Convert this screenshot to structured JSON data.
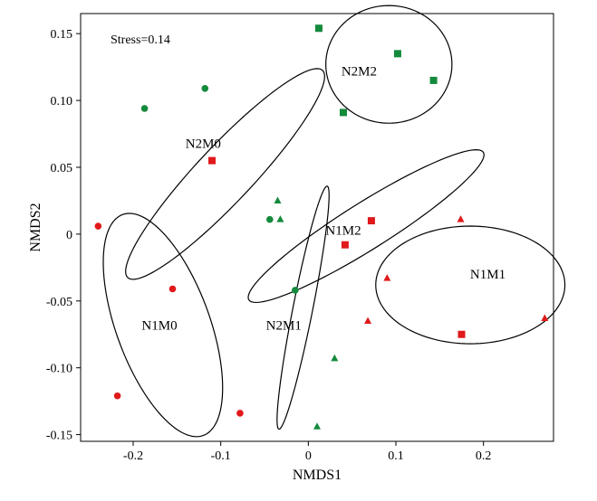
{
  "chart_data": {
    "type": "scatter",
    "xlabel": "NMDS1",
    "ylabel": "NMDS2",
    "xlim": [
      -0.26,
      0.28
    ],
    "ylim": [
      -0.155,
      0.165
    ],
    "xticks": [
      -0.2,
      -0.1,
      0.0,
      0.1,
      0.2
    ],
    "xtick_labels": [
      "-0.2",
      "-0.1",
      "0",
      "0.1",
      "0.2"
    ],
    "yticks": [
      0.15,
      0.1,
      0.05,
      0,
      -0.05,
      -0.1,
      -0.15
    ],
    "ytick_labels": [
      "0.15",
      "0.10",
      "0.05",
      "0",
      "-0.05",
      "-0.10",
      "-0.15"
    ],
    "annotation": "Stress=0.14",
    "colors": {
      "red": "#e0191b",
      "green": "#138a3c"
    },
    "points": [
      {
        "x": -0.24,
        "y": 0.006,
        "color": "red",
        "marker": "circle"
      },
      {
        "x": -0.155,
        "y": -0.041,
        "color": "red",
        "marker": "circle"
      },
      {
        "x": -0.218,
        "y": -0.121,
        "color": "red",
        "marker": "circle"
      },
      {
        "x": -0.078,
        "y": -0.134,
        "color": "red",
        "marker": "circle"
      },
      {
        "x": -0.11,
        "y": 0.055,
        "color": "red",
        "marker": "square"
      },
      {
        "x": 0.072,
        "y": 0.01,
        "color": "red",
        "marker": "square"
      },
      {
        "x": 0.042,
        "y": -0.008,
        "color": "red",
        "marker": "square"
      },
      {
        "x": 0.175,
        "y": -0.075,
        "color": "red",
        "marker": "square"
      },
      {
        "x": 0.174,
        "y": 0.011,
        "color": "red",
        "marker": "triangle"
      },
      {
        "x": 0.09,
        "y": -0.033,
        "color": "red",
        "marker": "triangle"
      },
      {
        "x": 0.068,
        "y": -0.065,
        "color": "red",
        "marker": "triangle"
      },
      {
        "x": 0.27,
        "y": -0.063,
        "color": "red",
        "marker": "triangle"
      },
      {
        "x": -0.187,
        "y": 0.094,
        "color": "green",
        "marker": "circle"
      },
      {
        "x": -0.118,
        "y": 0.109,
        "color": "green",
        "marker": "circle"
      },
      {
        "x": -0.044,
        "y": 0.011,
        "color": "green",
        "marker": "circle"
      },
      {
        "x": -0.015,
        "y": -0.042,
        "color": "green",
        "marker": "circle"
      },
      {
        "x": 0.012,
        "y": 0.154,
        "color": "green",
        "marker": "square"
      },
      {
        "x": 0.102,
        "y": 0.135,
        "color": "green",
        "marker": "square"
      },
      {
        "x": 0.143,
        "y": 0.115,
        "color": "green",
        "marker": "square"
      },
      {
        "x": 0.04,
        "y": 0.091,
        "color": "green",
        "marker": "square"
      },
      {
        "x": -0.035,
        "y": 0.025,
        "color": "green",
        "marker": "triangle"
      },
      {
        "x": -0.032,
        "y": 0.011,
        "color": "green",
        "marker": "triangle"
      },
      {
        "x": 0.03,
        "y": -0.093,
        "color": "green",
        "marker": "triangle"
      },
      {
        "x": 0.01,
        "y": -0.144,
        "color": "green",
        "marker": "triangle"
      }
    ],
    "ellipses": [
      {
        "label": "N1M0",
        "cx": -0.166,
        "cy": -0.068,
        "rx": 0.096,
        "ry": 0.049,
        "angle": -55,
        "label_at": [
          -0.17,
          -0.068
        ]
      },
      {
        "label": "N2M0",
        "cx": -0.095,
        "cy": 0.045,
        "rx": 0.136,
        "ry": 0.025,
        "angle": 34,
        "label_at": [
          -0.12,
          0.068
        ]
      },
      {
        "label": "N2M2",
        "cx": 0.092,
        "cy": 0.127,
        "rx": 0.072,
        "ry": 0.044,
        "angle": 0,
        "label_at": [
          0.058,
          0.122
        ]
      },
      {
        "label": "N1M2",
        "cx": 0.066,
        "cy": 0.006,
        "rx": 0.145,
        "ry": 0.019,
        "angle": 22,
        "label_at": [
          0.04,
          0.003
        ]
      },
      {
        "label": "N1M1",
        "cx": 0.185,
        "cy": -0.038,
        "rx": 0.108,
        "ry": 0.044,
        "angle": 0,
        "label_at": [
          0.205,
          -0.03
        ]
      },
      {
        "label": "N2M1",
        "cx": -0.006,
        "cy": -0.055,
        "rx": 0.095,
        "ry": 0.011,
        "angle": 73,
        "label_at": [
          -0.028,
          -0.068
        ]
      }
    ]
  }
}
